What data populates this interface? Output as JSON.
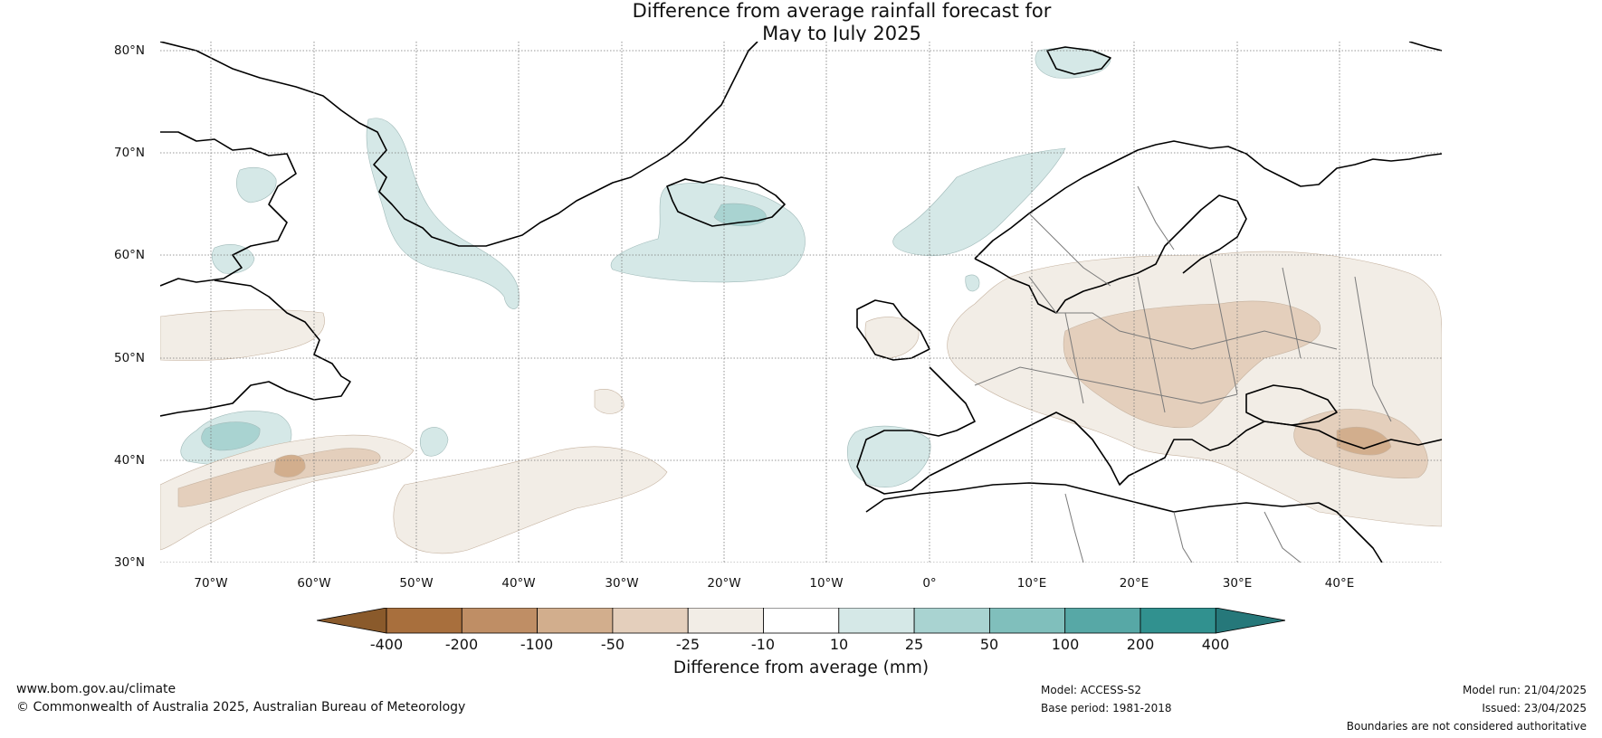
{
  "title": {
    "line1": "Difference from average rainfall forecast for",
    "line2": "May to July 2025"
  },
  "map": {
    "latitude_labels": [
      "80°N",
      "70°N",
      "60°N",
      "50°N",
      "40°N",
      "30°N"
    ],
    "longitude_labels": [
      "70°W",
      "60°W",
      "50°W",
      "40°W",
      "30°W",
      "20°W",
      "10°W",
      "0°",
      "10°E",
      "20°E",
      "30°E",
      "40°E"
    ],
    "extent": {
      "lon_min": -75,
      "lon_max": 50,
      "lat_min": 30,
      "lat_max": 81
    }
  },
  "colorbar": {
    "tick_labels": [
      "-400",
      "-200",
      "-100",
      "-50",
      "-25",
      "-10",
      "10",
      "25",
      "50",
      "100",
      "200",
      "400"
    ],
    "colors": [
      "#8a5a2b",
      "#a86f3d",
      "#bf8e65",
      "#d2ae8d",
      "#e4cfbc",
      "#f2ede6",
      "#ffffff",
      "#d5e8e7",
      "#a9d3d1",
      "#80bfbc",
      "#57a8a6",
      "#31918f",
      "#26787a"
    ],
    "label": "Difference from average (mm)"
  },
  "footer": {
    "website": "www.bom.gov.au/climate",
    "copyright": "© Commonwealth of Australia 2025, Australian Bureau of Meteorology",
    "model": "Model: ACCESS-S2",
    "base_period": "Base period: 1981-2018",
    "model_run": "Model run: 21/04/2025",
    "issued": "Issued: 23/04/2025",
    "disclaimer": "Boundaries are not considered authoritative"
  }
}
